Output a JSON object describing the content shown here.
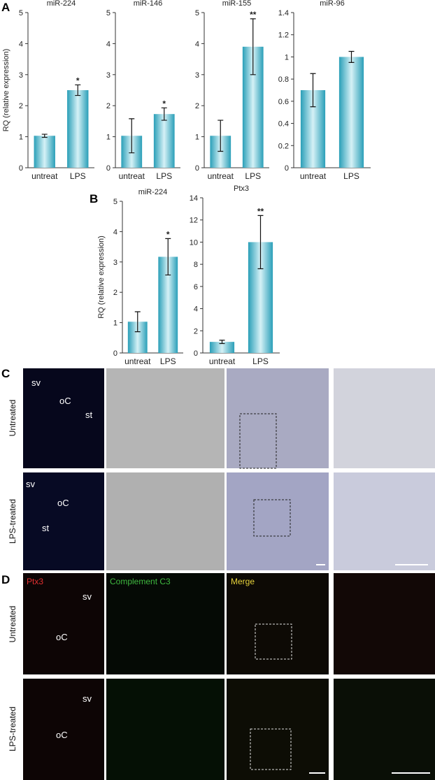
{
  "chart_data": [
    {
      "type": "bar",
      "title": "miR-224",
      "y_label": "RQ (relative expression)",
      "categories": [
        "untreat",
        "LPS"
      ],
      "values": [
        1.03,
        2.5
      ],
      "errors": [
        0.05,
        0.17
      ],
      "significance": [
        null,
        "*"
      ],
      "color": "#2a9fb8",
      "ylim": [
        0,
        5
      ],
      "yticks": [
        0,
        1,
        2,
        3,
        4,
        5
      ]
    },
    {
      "type": "bar",
      "title": "miR-146",
      "categories": [
        "untreat",
        "LPS"
      ],
      "values": [
        1.03,
        1.73
      ],
      "errors": [
        0.55,
        0.2
      ],
      "significance": [
        null,
        "*"
      ],
      "color": "#2a9fb8",
      "ylim": [
        0,
        5
      ],
      "yticks": [
        0,
        1,
        2,
        3,
        4,
        5
      ]
    },
    {
      "type": "bar",
      "title": "miR-155",
      "categories": [
        "untreat",
        "LPS"
      ],
      "values": [
        1.03,
        3.9
      ],
      "errors": [
        0.5,
        0.9
      ],
      "significance": [
        null,
        "**"
      ],
      "color": "#2a9fb8",
      "ylim": [
        0,
        5
      ],
      "yticks": [
        0,
        1,
        2,
        3,
        4,
        5
      ]
    },
    {
      "type": "bar",
      "title": "miR-96",
      "categories": [
        "untreat",
        "LPS"
      ],
      "values": [
        0.7,
        1.0
      ],
      "errors": [
        0.15,
        0.05
      ],
      "color": "#2a9fb8",
      "ylim": [
        0,
        1.4
      ],
      "yticks": [
        0,
        0.2,
        0.4,
        0.6,
        0.8,
        1,
        1.2,
        1.4
      ]
    },
    {
      "type": "bar",
      "title": "miR-224",
      "y_label": "RQ (relative expression)",
      "categories": [
        "untreat",
        "LPS"
      ],
      "values": [
        1.03,
        3.17
      ],
      "errors": [
        0.33,
        0.6
      ],
      "significance": [
        null,
        "*"
      ],
      "color": "#2a9fb8",
      "ylim": [
        0,
        5
      ],
      "yticks": [
        0,
        1,
        2,
        3,
        4,
        5
      ]
    },
    {
      "type": "bar",
      "title": "Ptx3",
      "categories": [
        "untreat",
        "LPS"
      ],
      "values": [
        1.0,
        10.0
      ],
      "errors": [
        0.15,
        2.4
      ],
      "significance": [
        null,
        "**"
      ],
      "color": "#2a9fb8",
      "ylim": [
        0,
        14
      ],
      "yticks": [
        0,
        2,
        4,
        6,
        8,
        10,
        12,
        14
      ]
    }
  ],
  "panel_labels": [
    "A",
    "B",
    "C",
    "D"
  ],
  "panel_c": {
    "row_labels": [
      "Untreated",
      "LPS-treated"
    ],
    "region_labels": [
      "sv",
      "oC",
      "st",
      "sv",
      "oC",
      "st"
    ]
  },
  "panel_d": {
    "column_labels": [
      "Ptx3",
      "Complement C3",
      "Merge"
    ],
    "row_labels": [
      "Untreated",
      "LPS-treated"
    ],
    "region_labels": [
      "sv",
      "oC",
      "sv",
      "oC"
    ]
  }
}
